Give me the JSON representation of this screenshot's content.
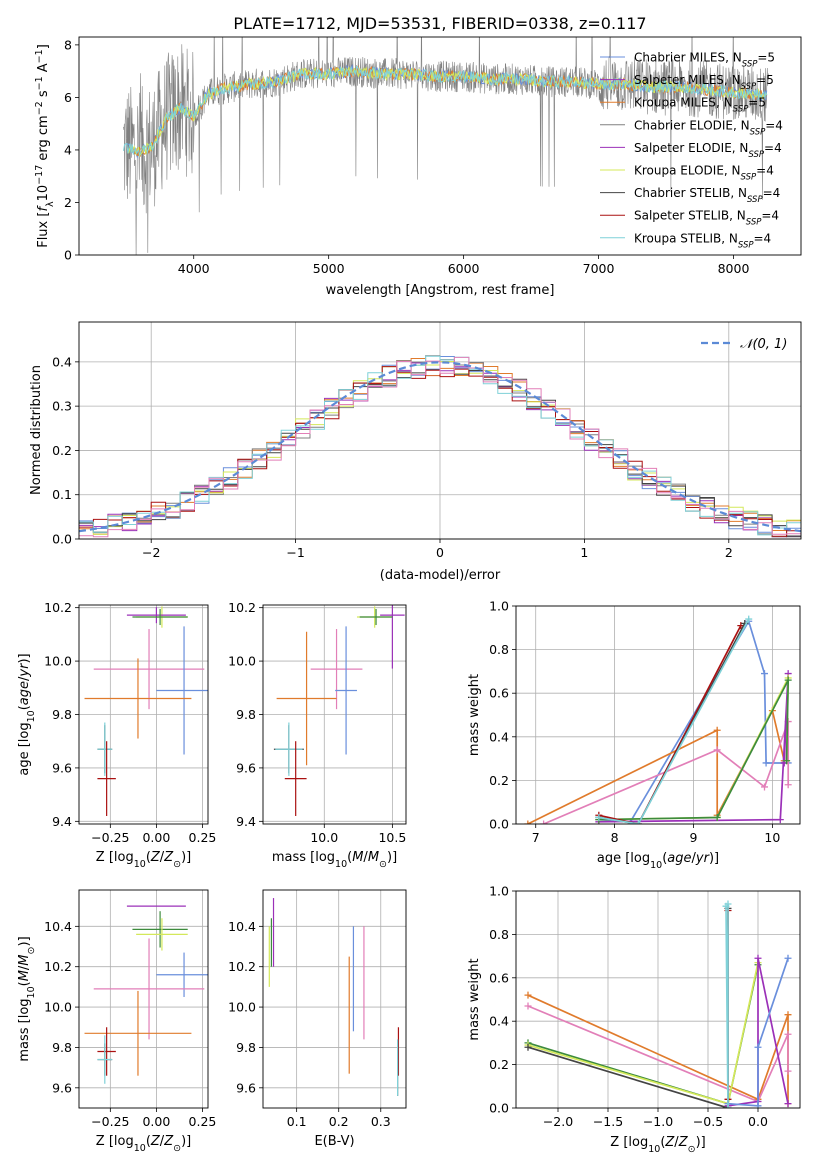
{
  "figure_title": "PLATE=1712, MJD=53531, FIBERID=0338, z=0.117",
  "series_colors": {
    "Chabrier MILES": "#6a8fdc",
    "Salpeter MILES": "#9b30b8",
    "Kroupa MILES": "#e07b2c",
    "Chabrier ELODIE": "#808080",
    "Salpeter ELODIE": "#9b30b8",
    "Kroupa ELODIE": "#d4e85a",
    "Chabrier STELIB": "#444444",
    "Salpeter STELIB": "#aa1111",
    "Kroupa STELIB": "#7fd1d8",
    "pink": "#e27fb8",
    "green": "#3d8b3d"
  },
  "chart_data": [
    {
      "id": "spectrum",
      "type": "line",
      "title": "PLATE=1712, MJD=53531, FIBERID=0338, z=0.117",
      "xlabel": "wavelength [Angstrom, rest frame]",
      "ylabel": "Flux [f_λ 10^-17 erg cm^-2 s^-1 A^-1]",
      "xlim": [
        3150,
        8500
      ],
      "ylim": [
        0,
        8.3
      ],
      "xticks": [
        4000,
        5000,
        6000,
        7000,
        8000
      ],
      "yticks": [
        0,
        2,
        4,
        6,
        8
      ],
      "grid": false,
      "legend_position": "right",
      "legend": [
        {
          "name": "Chabrier MILES",
          "nssp": "5"
        },
        {
          "name": "Salpeter MILES",
          "nssp": "5"
        },
        {
          "name": "Kroupa MILES",
          "nssp": "5"
        },
        {
          "name": "Chabrier ELODIE",
          "nssp": "4"
        },
        {
          "name": "Salpeter ELODIE",
          "nssp": "4"
        },
        {
          "name": "Kroupa ELODIE",
          "nssp": "4"
        },
        {
          "name": "Chabrier STELIB",
          "nssp": "4"
        },
        {
          "name": "Salpeter STELIB",
          "nssp": "4"
        },
        {
          "name": "Kroupa STELIB",
          "nssp": "4"
        }
      ],
      "model_continuum": {
        "x": [
          3500,
          3600,
          3700,
          3800,
          3900,
          4000,
          4100,
          4200,
          4400,
          4600,
          4800,
          5000,
          5200,
          5400,
          5600,
          5800,
          6000,
          6200,
          6400,
          6600,
          6800,
          7000,
          7200,
          7400,
          7600,
          7800,
          8000,
          8200
        ],
        "y": [
          4.1,
          3.9,
          4.2,
          5.2,
          5.6,
          5.3,
          6.1,
          6.3,
          6.5,
          6.6,
          6.9,
          6.9,
          7.0,
          6.9,
          6.9,
          6.8,
          6.8,
          6.7,
          6.7,
          6.6,
          6.6,
          6.5,
          6.5,
          6.4,
          6.4,
          6.3,
          6.2,
          6.1
        ]
      }
    },
    {
      "id": "residuals",
      "type": "line",
      "xlabel": "(data-model)/error",
      "ylabel": "Normed distribution",
      "xlim": [
        -2.5,
        2.5
      ],
      "ylim": [
        0,
        0.49
      ],
      "xticks": [
        -2,
        -1,
        0,
        1,
        2
      ],
      "yticks": [
        0.0,
        0.1,
        0.2,
        0.3,
        0.4
      ],
      "grid": true,
      "legend_position": "top-right",
      "legend": [
        "𝒩(0, 1)"
      ],
      "gaussian": {
        "mean": 0,
        "sigma": 1
      }
    },
    {
      "id": "age-vs-Z",
      "type": "scatter",
      "xlabel": "Z [log10(Z/Z⊙)]",
      "ylabel": "age [log10(age/yr)]",
      "xlim": [
        -0.42,
        0.28
      ],
      "ylim": [
        9.39,
        10.21
      ],
      "xticks": [
        -0.25,
        0.0,
        0.25
      ],
      "yticks": [
        9.4,
        9.6,
        9.8,
        10.0,
        10.2
      ],
      "grid": true,
      "points": [
        {
          "c": "Kroupa ELODIE",
          "x": 0.03,
          "y": 10.165,
          "xe": 0.14,
          "ye": 0.04
        },
        {
          "c": "Salpeter ELODIE",
          "x": 0.0,
          "y": 10.172,
          "xe": 0.16,
          "ye": 0.03
        },
        {
          "c": "green",
          "x": 0.02,
          "y": 10.165,
          "xe": 0.15,
          "ye": 0.03
        },
        {
          "c": "pink",
          "x": -0.04,
          "y": 9.97,
          "xe": 0.3,
          "ye": 0.15
        },
        {
          "c": "Chabrier MILES",
          "x": 0.15,
          "y": 9.89,
          "xe": 0.15,
          "ye": 0.24
        },
        {
          "c": "Kroupa MILES",
          "x": -0.1,
          "y": 9.86,
          "xe": 0.29,
          "ye": 0.15
        },
        {
          "c": "Chabrier STELIB",
          "x": -0.28,
          "y": 9.67,
          "xe": 0.04,
          "ye": 0.09
        },
        {
          "c": "Kroupa STELIB",
          "x": -0.28,
          "y": 9.67,
          "xe": 0.04,
          "ye": 0.1
        },
        {
          "c": "Salpeter STELIB",
          "x": -0.27,
          "y": 9.56,
          "xe": 0.05,
          "ye": 0.14
        }
      ]
    },
    {
      "id": "age-vs-mass",
      "type": "scatter",
      "xlabel": "mass [log10(M/M⊙)]",
      "ylabel": "",
      "xlim": [
        9.55,
        10.6
      ],
      "ylim": [
        9.39,
        10.21
      ],
      "xticks": [
        10.0,
        10.5
      ],
      "yticks": [
        9.4,
        9.6,
        9.8,
        10.0,
        10.2
      ],
      "grid": true,
      "points": [
        {
          "c": "Kroupa ELODIE",
          "x": 10.37,
          "y": 10.165,
          "xe": 0.13,
          "ye": 0.04
        },
        {
          "c": "Salpeter ELODIE",
          "x": 10.5,
          "y": 10.172,
          "xe": 0.09,
          "ye": 0.2
        },
        {
          "c": "green",
          "x": 10.38,
          "y": 10.165,
          "xe": 0.12,
          "ye": 0.03
        },
        {
          "c": "pink",
          "x": 10.09,
          "y": 9.97,
          "xe": 0.19,
          "ye": 0.15
        },
        {
          "c": "Chabrier MILES",
          "x": 10.16,
          "y": 9.89,
          "xe": 0.08,
          "ye": 0.24
        },
        {
          "c": "Kroupa MILES",
          "x": 9.87,
          "y": 9.86,
          "xe": 0.22,
          "ye": 0.25
        },
        {
          "c": "Chabrier STELIB",
          "x": 9.74,
          "y": 9.67,
          "xe": 0.11,
          "ye": 0.09
        },
        {
          "c": "Kroupa STELIB",
          "x": 9.74,
          "y": 9.67,
          "xe": 0.1,
          "ye": 0.1
        },
        {
          "c": "Salpeter STELIB",
          "x": 9.79,
          "y": 9.56,
          "xe": 0.08,
          "ye": 0.14
        }
      ]
    },
    {
      "id": "weight-vs-age",
      "type": "line",
      "xlabel": "age [log10(age/yr)]",
      "ylabel": "mass weight",
      "xlim": [
        6.75,
        10.35
      ],
      "ylim": [
        0,
        1.0
      ],
      "xticks": [
        7,
        8,
        9,
        10
      ],
      "yticks": [
        0.0,
        0.2,
        0.4,
        0.6,
        0.8,
        1.0
      ],
      "grid": true,
      "series": [
        {
          "c": "Chabrier MILES",
          "x": [
            7.8,
            8.2,
            9.7,
            9.9,
            9.92,
            10.2
          ],
          "y": [
            0.02,
            0.01,
            0.93,
            0.69,
            0.28,
            0.28
          ]
        },
        {
          "c": "Kroupa MILES",
          "x": [
            6.9,
            9.3,
            9.3,
            10.0,
            10.15
          ],
          "y": [
            0.0,
            0.43,
            0.04,
            0.52,
            0.29
          ]
        },
        {
          "c": "pink",
          "x": [
            7.1,
            9.3,
            9.9,
            10.2,
            10.2
          ],
          "y": [
            0.0,
            0.34,
            0.17,
            0.47,
            0.18
          ]
        },
        {
          "c": "Salpeter ELODIE",
          "x": [
            7.8,
            10.1,
            10.2,
            10.15
          ],
          "y": [
            0.01,
            0.02,
            0.69,
            0.28
          ]
        },
        {
          "c": "Kroupa ELODIE",
          "x": [
            7.8,
            9.3,
            10.2,
            10.18
          ],
          "y": [
            0.02,
            0.03,
            0.67,
            0.29
          ]
        },
        {
          "c": "green",
          "x": [
            7.8,
            9.3,
            10.2,
            10.18
          ],
          "y": [
            0.02,
            0.03,
            0.66,
            0.29
          ]
        },
        {
          "c": "Salpeter STELIB",
          "x": [
            7.8,
            8.3,
            9.6
          ],
          "y": [
            0.04,
            0.0,
            0.91
          ]
        },
        {
          "c": "Chabrier STELIB",
          "x": [
            7.8,
            8.3,
            9.65
          ],
          "y": [
            0.03,
            0.0,
            0.92
          ]
        },
        {
          "c": "Kroupa STELIB",
          "x": [
            7.8,
            8.3,
            9.7
          ],
          "y": [
            0.03,
            0.0,
            0.94
          ]
        }
      ]
    },
    {
      "id": "mass-vs-Z",
      "type": "scatter",
      "xlabel": "Z [log10(Z/Z⊙)]",
      "ylabel": "mass [log10(M/M⊙)]",
      "xlim": [
        -0.42,
        0.28
      ],
      "ylim": [
        9.5,
        10.58
      ],
      "xticks": [
        -0.25,
        0.0,
        0.25
      ],
      "yticks": [
        9.6,
        9.8,
        10.0,
        10.2,
        10.4
      ],
      "grid": true,
      "points": [
        {
          "c": "Salpeter ELODIE",
          "x": 0.0,
          "y": 10.5,
          "xe": 0.16,
          "ye": 0.0
        },
        {
          "c": "green",
          "x": 0.02,
          "y": 10.385,
          "xe": 0.15,
          "ye": 0.09
        },
        {
          "c": "Kroupa ELODIE",
          "x": 0.03,
          "y": 10.36,
          "xe": 0.14,
          "ye": 0.08
        },
        {
          "c": "Chabrier MILES",
          "x": 0.15,
          "y": 10.16,
          "xe": 0.15,
          "ye": 0.11
        },
        {
          "c": "pink",
          "x": -0.04,
          "y": 10.09,
          "xe": 0.3,
          "ye": 0.25
        },
        {
          "c": "Kroupa MILES",
          "x": -0.1,
          "y": 9.87,
          "xe": 0.29,
          "ye": 0.21
        },
        {
          "c": "Salpeter STELIB",
          "x": -0.27,
          "y": 9.78,
          "xe": 0.05,
          "ye": 0.12
        },
        {
          "c": "Chabrier STELIB",
          "x": -0.28,
          "y": 9.74,
          "xe": 0.04,
          "ye": 0.08
        },
        {
          "c": "Kroupa STELIB",
          "x": -0.28,
          "y": 9.74,
          "xe": 0.04,
          "ye": 0.12
        }
      ]
    },
    {
      "id": "mass-vs-EBV",
      "type": "scatter",
      "xlabel": "E(B-V)",
      "ylabel": "",
      "xlim": [
        0.02,
        0.36
      ],
      "ylim": [
        9.5,
        10.58
      ],
      "xticks": [
        0.1,
        0.2,
        0.3
      ],
      "yticks": [
        9.6,
        9.8,
        10.0,
        10.2,
        10.4
      ],
      "grid": true,
      "points": [
        {
          "c": "Salpeter ELODIE",
          "x": 0.045,
          "y": 10.37,
          "xe": 0.0,
          "ye": 0.17
        },
        {
          "c": "green",
          "x": 0.04,
          "y": 10.32,
          "xe": 0.0,
          "ye": 0.12
        },
        {
          "c": "Kroupa ELODIE",
          "x": 0.035,
          "y": 10.25,
          "xe": 0.0,
          "ye": 0.15
        },
        {
          "c": "Chabrier MILES",
          "x": 0.235,
          "y": 10.14,
          "xe": 0.0,
          "ye": 0.26
        },
        {
          "c": "pink",
          "x": 0.26,
          "y": 10.12,
          "xe": 0.0,
          "ye": 0.28
        },
        {
          "c": "Kroupa MILES",
          "x": 0.225,
          "y": 9.96,
          "xe": 0.0,
          "ye": 0.29
        },
        {
          "c": "Salpeter STELIB",
          "x": 0.342,
          "y": 9.78,
          "xe": 0.0,
          "ye": 0.12
        },
        {
          "c": "Chabrier STELIB",
          "x": 0.34,
          "y": 9.69,
          "xe": 0.0,
          "ye": 0.13
        },
        {
          "c": "Kroupa STELIB",
          "x": 0.34,
          "y": 9.7,
          "xe": 0.0,
          "ye": 0.14
        }
      ]
    },
    {
      "id": "weight-vs-Z",
      "type": "line",
      "xlabel": "Z [log10(Z/Z⊙)]",
      "ylabel": "mass weight",
      "xlim": [
        -2.42,
        0.42
      ],
      "ylim": [
        0,
        1.0
      ],
      "xticks": [
        -2.0,
        -1.5,
        -1.0,
        -0.5,
        0.0
      ],
      "yticks": [
        0.0,
        0.2,
        0.4,
        0.6,
        0.8,
        1.0
      ],
      "grid": true,
      "series": [
        {
          "c": "Kroupa MILES",
          "x": [
            -2.3,
            0.0,
            0.3,
            0.3
          ],
          "y": [
            0.52,
            0.04,
            0.43,
            0.02
          ]
        },
        {
          "c": "pink",
          "x": [
            -2.3,
            0.0,
            0.3,
            0.3
          ],
          "y": [
            0.47,
            0.03,
            0.34,
            0.17
          ]
        },
        {
          "c": "green",
          "x": [
            -2.3,
            -0.3,
            0.0
          ],
          "y": [
            0.3,
            0.02,
            0.66
          ]
        },
        {
          "c": "Kroupa ELODIE",
          "x": [
            -2.3,
            -0.3,
            0.0
          ],
          "y": [
            0.29,
            0.02,
            0.67
          ]
        },
        {
          "c": "Chabrier STELIB",
          "x": [
            -2.3,
            -0.3,
            -0.3
          ],
          "y": [
            0.28,
            0.0,
            0.92
          ]
        },
        {
          "c": "Salpeter ELODIE",
          "x": [
            -0.3,
            0.0,
            0.0,
            0.3
          ],
          "y": [
            0.01,
            0.03,
            0.69,
            0.02
          ]
        },
        {
          "c": "Chabrier MILES",
          "x": [
            -0.3,
            0.0,
            0.0,
            0.3
          ],
          "y": [
            0.02,
            0.01,
            0.28,
            0.69
          ]
        },
        {
          "c": "Salpeter STELIB",
          "x": [
            -0.3,
            -0.3
          ],
          "y": [
            0.04,
            0.91
          ]
        },
        {
          "c": "Kroupa STELIB",
          "x": [
            -0.32,
            -0.3,
            -0.3
          ],
          "y": [
            0.93,
            0.0,
            0.94
          ]
        }
      ]
    }
  ]
}
